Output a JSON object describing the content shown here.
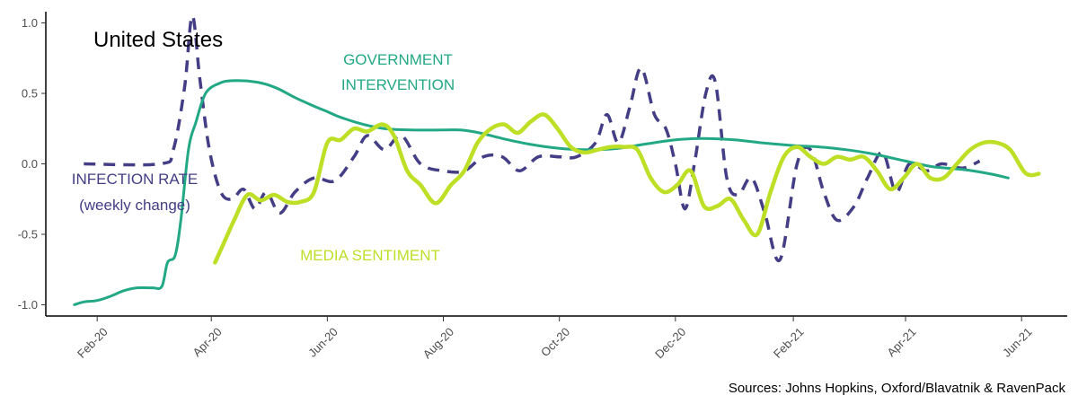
{
  "chart_data": {
    "type": "line",
    "title": "United States",
    "source": "Sources: Johns Hopkins, Oxford/Blavatnik & RavenPack",
    "xlabel": "",
    "ylabel": "",
    "xlim": [
      "2020-01-05",
      "2021-06-25"
    ],
    "ylim": [
      -1.08,
      1.08
    ],
    "y_ticks": [
      {
        "value": 1.0,
        "label": "1.0"
      },
      {
        "value": 0.5,
        "label": "0.5"
      },
      {
        "value": 0.0,
        "label": "0.0"
      },
      {
        "value": -0.5,
        "label": "-0.5"
      },
      {
        "value": -1.0,
        "label": "-1.0"
      }
    ],
    "x_ticks": [
      {
        "value": "2020-02-01",
        "label": "Feb-20"
      },
      {
        "value": "2020-04-01",
        "label": "Apr-20"
      },
      {
        "value": "2020-06-01",
        "label": "Jun-20"
      },
      {
        "value": "2020-08-01",
        "label": "Aug-20"
      },
      {
        "value": "2020-10-01",
        "label": "Oct-20"
      },
      {
        "value": "2020-12-01",
        "label": "Dec-20"
      },
      {
        "value": "2021-02-01",
        "label": "Feb-21"
      },
      {
        "value": "2021-04-01",
        "label": "Apr-21"
      },
      {
        "value": "2021-06-01",
        "label": "Jun-21"
      }
    ],
    "grid": false,
    "legend": "none",
    "annotations": [
      {
        "series": "government",
        "lines": [
          "GOVERNMENT",
          "INTERVENTION"
        ]
      },
      {
        "series": "infection",
        "lines": [
          "INFECTION RATE",
          "(weekly change)"
        ]
      },
      {
        "series": "media",
        "lines": [
          "MEDIA SENTIMENT"
        ]
      }
    ],
    "series": [
      {
        "key": "government",
        "color": "#22a884",
        "style": "solid",
        "points": [
          [
            "2020-01-20",
            -1.0
          ],
          [
            "2020-01-25",
            -0.98
          ],
          [
            "2020-02-01",
            -0.97
          ],
          [
            "2020-02-08",
            -0.94
          ],
          [
            "2020-02-15",
            -0.9
          ],
          [
            "2020-02-22",
            -0.88
          ],
          [
            "2020-03-01",
            -0.88
          ],
          [
            "2020-03-06",
            -0.87
          ],
          [
            "2020-03-09",
            -0.7
          ],
          [
            "2020-03-13",
            -0.65
          ],
          [
            "2020-03-16",
            -0.4
          ],
          [
            "2020-03-20",
            0.1
          ],
          [
            "2020-03-24",
            0.3
          ],
          [
            "2020-03-29",
            0.5
          ],
          [
            "2020-04-05",
            0.57
          ],
          [
            "2020-04-12",
            0.59
          ],
          [
            "2020-04-25",
            0.58
          ],
          [
            "2020-05-05",
            0.54
          ],
          [
            "2020-05-15",
            0.47
          ],
          [
            "2020-05-25",
            0.41
          ],
          [
            "2020-06-01",
            0.37
          ],
          [
            "2020-06-08",
            0.33
          ],
          [
            "2020-06-20",
            0.28
          ],
          [
            "2020-07-01",
            0.25
          ],
          [
            "2020-07-15",
            0.24
          ],
          [
            "2020-08-01",
            0.24
          ],
          [
            "2020-08-10",
            0.24
          ],
          [
            "2020-08-20",
            0.22
          ],
          [
            "2020-09-01",
            0.18
          ],
          [
            "2020-09-15",
            0.14
          ],
          [
            "2020-10-01",
            0.11
          ],
          [
            "2020-10-15",
            0.1
          ],
          [
            "2020-11-01",
            0.11
          ],
          [
            "2020-11-15",
            0.14
          ],
          [
            "2020-12-01",
            0.17
          ],
          [
            "2020-12-15",
            0.18
          ],
          [
            "2021-01-01",
            0.17
          ],
          [
            "2021-01-15",
            0.15
          ],
          [
            "2021-02-01",
            0.13
          ],
          [
            "2021-02-15",
            0.12
          ],
          [
            "2021-03-01",
            0.1
          ],
          [
            "2021-03-15",
            0.07
          ],
          [
            "2021-04-01",
            0.02
          ],
          [
            "2021-04-15",
            -0.02
          ],
          [
            "2021-05-01",
            -0.04
          ],
          [
            "2021-05-15",
            -0.07
          ],
          [
            "2021-05-25",
            -0.1
          ]
        ]
      },
      {
        "key": "infection",
        "color": "#433e85",
        "style": "dashed",
        "points": [
          [
            "2020-01-25",
            0.0
          ],
          [
            "2020-03-05",
            0.0
          ],
          [
            "2020-03-12",
            0.1
          ],
          [
            "2020-03-18",
            0.55
          ],
          [
            "2020-03-22",
            1.05
          ],
          [
            "2020-03-26",
            0.6
          ],
          [
            "2020-03-31",
            0.1
          ],
          [
            "2020-04-06",
            -0.2
          ],
          [
            "2020-04-12",
            -0.25
          ],
          [
            "2020-04-18",
            -0.18
          ],
          [
            "2020-04-24",
            -0.32
          ],
          [
            "2020-04-30",
            -0.2
          ],
          [
            "2020-05-07",
            -0.35
          ],
          [
            "2020-05-15",
            -0.2
          ],
          [
            "2020-05-25",
            -0.1
          ],
          [
            "2020-06-05",
            -0.12
          ],
          [
            "2020-06-15",
            0.05
          ],
          [
            "2020-06-22",
            0.2
          ],
          [
            "2020-07-01",
            0.1
          ],
          [
            "2020-07-10",
            0.2
          ],
          [
            "2020-07-20",
            0.0
          ],
          [
            "2020-08-01",
            -0.05
          ],
          [
            "2020-08-12",
            -0.05
          ],
          [
            "2020-08-22",
            0.05
          ],
          [
            "2020-09-01",
            0.05
          ],
          [
            "2020-09-10",
            -0.05
          ],
          [
            "2020-09-20",
            0.05
          ],
          [
            "2020-10-01",
            0.05
          ],
          [
            "2020-10-10",
            0.05
          ],
          [
            "2020-10-20",
            0.15
          ],
          [
            "2020-10-26",
            0.35
          ],
          [
            "2020-11-01",
            0.15
          ],
          [
            "2020-11-07",
            0.4
          ],
          [
            "2020-11-13",
            0.68
          ],
          [
            "2020-11-20",
            0.35
          ],
          [
            "2020-11-26",
            0.25
          ],
          [
            "2020-12-01",
            0.0
          ],
          [
            "2020-12-06",
            -0.32
          ],
          [
            "2020-12-11",
            0.0
          ],
          [
            "2020-12-17",
            0.5
          ],
          [
            "2020-12-22",
            0.58
          ],
          [
            "2020-12-28",
            -0.1
          ],
          [
            "2021-01-03",
            -0.22
          ],
          [
            "2021-01-10",
            -0.1
          ],
          [
            "2021-01-17",
            -0.35
          ],
          [
            "2021-01-25",
            -0.68
          ],
          [
            "2021-02-03",
            0.0
          ],
          [
            "2021-02-10",
            0.1
          ],
          [
            "2021-02-17",
            -0.2
          ],
          [
            "2021-02-24",
            -0.4
          ],
          [
            "2021-03-05",
            -0.3
          ],
          [
            "2021-03-12",
            -0.1
          ],
          [
            "2021-03-20",
            0.08
          ],
          [
            "2021-03-27",
            -0.2
          ],
          [
            "2021-04-03",
            0.0
          ],
          [
            "2021-04-12",
            -0.05
          ],
          [
            "2021-04-20",
            0.0
          ],
          [
            "2021-05-01",
            -0.03
          ],
          [
            "2021-05-10",
            0.02
          ]
        ]
      },
      {
        "key": "media",
        "color": "#bddf26",
        "style": "solid-thick",
        "points": [
          [
            "2020-04-03",
            -0.7
          ],
          [
            "2020-04-08",
            -0.55
          ],
          [
            "2020-04-13",
            -0.4
          ],
          [
            "2020-04-20",
            -0.22
          ],
          [
            "2020-04-27",
            -0.26
          ],
          [
            "2020-05-04",
            -0.22
          ],
          [
            "2020-05-11",
            -0.27
          ],
          [
            "2020-05-18",
            -0.27
          ],
          [
            "2020-05-25",
            -0.2
          ],
          [
            "2020-06-01",
            0.15
          ],
          [
            "2020-06-08",
            0.17
          ],
          [
            "2020-06-15",
            0.25
          ],
          [
            "2020-06-22",
            0.23
          ],
          [
            "2020-06-30",
            0.28
          ],
          [
            "2020-07-06",
            0.2
          ],
          [
            "2020-07-13",
            -0.05
          ],
          [
            "2020-07-20",
            -0.15
          ],
          [
            "2020-07-28",
            -0.28
          ],
          [
            "2020-08-05",
            -0.15
          ],
          [
            "2020-08-12",
            -0.05
          ],
          [
            "2020-08-19",
            0.15
          ],
          [
            "2020-08-26",
            0.25
          ],
          [
            "2020-09-02",
            0.28
          ],
          [
            "2020-09-09",
            0.22
          ],
          [
            "2020-09-16",
            0.3
          ],
          [
            "2020-09-23",
            0.35
          ],
          [
            "2020-09-30",
            0.25
          ],
          [
            "2020-10-07",
            0.12
          ],
          [
            "2020-10-14",
            0.08
          ],
          [
            "2020-10-21",
            0.1
          ],
          [
            "2020-10-28",
            0.12
          ],
          [
            "2020-11-04",
            0.12
          ],
          [
            "2020-11-11",
            0.1
          ],
          [
            "2020-11-18",
            -0.1
          ],
          [
            "2020-11-25",
            -0.2
          ],
          [
            "2020-12-02",
            -0.15
          ],
          [
            "2020-12-09",
            -0.05
          ],
          [
            "2020-12-16",
            -0.3
          ],
          [
            "2020-12-23",
            -0.3
          ],
          [
            "2020-12-30",
            -0.25
          ],
          [
            "2021-01-06",
            -0.4
          ],
          [
            "2021-01-13",
            -0.5
          ],
          [
            "2021-01-20",
            -0.2
          ],
          [
            "2021-01-27",
            0.05
          ],
          [
            "2021-02-03",
            0.12
          ],
          [
            "2021-02-10",
            0.05
          ],
          [
            "2021-02-17",
            0.0
          ],
          [
            "2021-02-24",
            0.05
          ],
          [
            "2021-03-03",
            0.03
          ],
          [
            "2021-03-10",
            0.05
          ],
          [
            "2021-03-17",
            -0.05
          ],
          [
            "2021-03-24",
            -0.18
          ],
          [
            "2021-03-31",
            -0.1
          ],
          [
            "2021-04-07",
            0.0
          ],
          [
            "2021-04-14",
            -0.1
          ],
          [
            "2021-04-21",
            -0.1
          ],
          [
            "2021-04-28",
            0.0
          ],
          [
            "2021-05-05",
            0.1
          ],
          [
            "2021-05-12",
            0.15
          ],
          [
            "2021-05-19",
            0.15
          ],
          [
            "2021-05-26",
            0.1
          ],
          [
            "2021-06-02",
            -0.05
          ],
          [
            "2021-06-06",
            -0.08
          ],
          [
            "2021-06-10",
            -0.07
          ]
        ]
      }
    ]
  }
}
